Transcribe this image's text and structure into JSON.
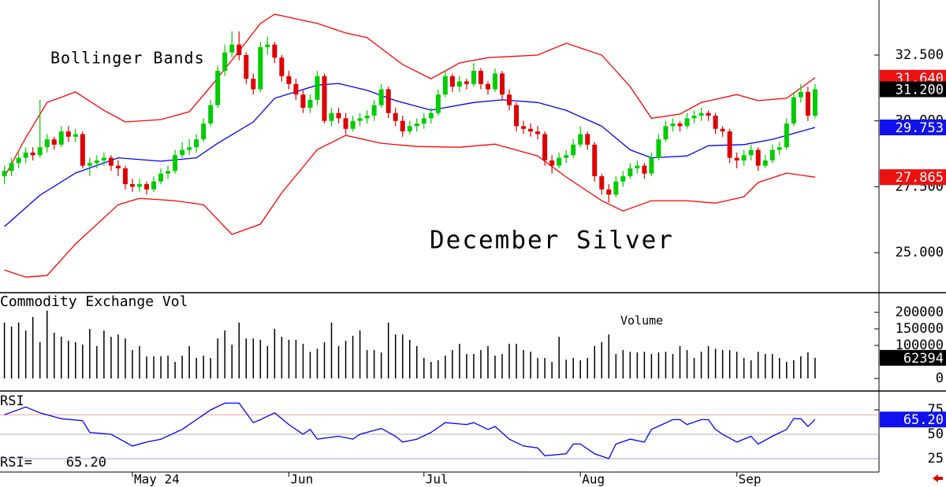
{
  "chart_data": [
    {
      "type": "candlestick",
      "title": "December Silver",
      "subtitle": "Bollinger Bands",
      "categories": [
        null,
        null,
        null,
        null,
        null,
        null,
        null,
        null,
        null,
        null,
        null,
        null,
        null,
        null,
        null,
        null,
        null,
        null,
        "May 24",
        null,
        null,
        null,
        null,
        null,
        null,
        null,
        null,
        null,
        null,
        null,
        null,
        null,
        null,
        null,
        null,
        null,
        null,
        null,
        null,
        null,
        "Jun",
        null,
        null,
        null,
        null,
        null,
        null,
        null,
        null,
        null,
        null,
        null,
        null,
        null,
        null,
        null,
        null,
        null,
        null,
        "Jul",
        null,
        null,
        null,
        null,
        null,
        null,
        null,
        null,
        null,
        null,
        null,
        null,
        null,
        null,
        null,
        null,
        null,
        null,
        null,
        null,
        null,
        "Aug",
        null,
        null,
        null,
        null,
        null,
        null,
        null,
        null,
        null,
        null,
        null,
        null,
        null,
        null,
        null,
        null,
        null,
        null,
        null,
        null,
        null,
        "Sep",
        null,
        null,
        null,
        null,
        null,
        null,
        null,
        null,
        null,
        null,
        null
      ],
      "ohlc": [
        [
          27.9,
          28.3,
          27.6,
          28.1
        ],
        [
          28.1,
          28.6,
          27.9,
          28.4
        ],
        [
          28.4,
          28.8,
          28.2,
          28.6
        ],
        [
          28.6,
          29.0,
          28.4,
          28.8
        ],
        [
          28.8,
          29.0,
          28.5,
          28.7
        ],
        [
          28.7,
          30.8,
          28.6,
          29.0
        ],
        [
          29.0,
          29.5,
          28.8,
          29.3
        ],
        [
          29.3,
          29.4,
          28.9,
          29.1
        ],
        [
          29.1,
          29.8,
          29.0,
          29.6
        ],
        [
          29.6,
          29.8,
          29.2,
          29.4
        ],
        [
          29.4,
          29.7,
          29.2,
          29.5
        ],
        [
          29.5,
          29.6,
          28.2,
          28.3
        ],
        [
          28.3,
          28.6,
          27.9,
          28.4
        ],
        [
          28.4,
          28.7,
          28.2,
          28.5
        ],
        [
          28.5,
          28.8,
          28.3,
          28.6
        ],
        [
          28.6,
          28.7,
          28.1,
          28.3
        ],
        [
          28.3,
          28.5,
          27.9,
          28.2
        ],
        [
          28.2,
          28.3,
          27.4,
          27.6
        ],
        [
          27.6,
          27.8,
          27.3,
          27.5
        ],
        [
          27.5,
          27.8,
          27.3,
          27.6
        ],
        [
          27.6,
          27.7,
          27.2,
          27.4
        ],
        [
          27.4,
          27.9,
          27.3,
          27.7
        ],
        [
          27.7,
          28.2,
          27.6,
          28.0
        ],
        [
          28.0,
          28.3,
          27.8,
          28.1
        ],
        [
          28.1,
          28.9,
          28.0,
          28.7
        ],
        [
          28.7,
          29.2,
          28.6,
          28.9
        ],
        [
          28.9,
          29.3,
          28.7,
          29.0
        ],
        [
          29.0,
          29.5,
          28.8,
          29.3
        ],
        [
          29.3,
          30.1,
          29.2,
          29.9
        ],
        [
          29.9,
          30.8,
          29.8,
          30.6
        ],
        [
          30.6,
          32.1,
          30.5,
          31.9
        ],
        [
          31.9,
          32.9,
          31.7,
          32.6
        ],
        [
          32.6,
          33.4,
          32.4,
          32.9
        ],
        [
          32.9,
          33.4,
          32.3,
          32.5
        ],
        [
          32.5,
          32.6,
          31.4,
          31.6
        ],
        [
          31.6,
          31.8,
          31.0,
          31.2
        ],
        [
          31.2,
          33.0,
          31.1,
          32.8
        ],
        [
          32.8,
          33.2,
          32.5,
          32.9
        ],
        [
          32.9,
          33.0,
          32.2,
          32.4
        ],
        [
          32.4,
          32.5,
          31.5,
          31.7
        ],
        [
          31.7,
          31.9,
          31.2,
          31.4
        ],
        [
          31.4,
          31.6,
          30.8,
          31.0
        ],
        [
          31.0,
          31.2,
          30.3,
          30.5
        ],
        [
          30.5,
          31.0,
          30.3,
          30.8
        ],
        [
          30.8,
          31.9,
          30.6,
          31.7
        ],
        [
          31.7,
          31.8,
          29.9,
          30.0
        ],
        [
          30.0,
          30.5,
          29.8,
          30.3
        ],
        [
          30.3,
          30.5,
          29.9,
          30.1
        ],
        [
          30.1,
          30.3,
          29.5,
          29.7
        ],
        [
          29.7,
          30.2,
          29.6,
          30.0
        ],
        [
          30.0,
          30.3,
          29.8,
          30.1
        ],
        [
          30.1,
          30.4,
          29.9,
          30.2
        ],
        [
          30.2,
          30.8,
          30.0,
          30.6
        ],
        [
          30.6,
          31.4,
          30.5,
          31.2
        ],
        [
          31.2,
          31.3,
          30.1,
          30.3
        ],
        [
          30.3,
          30.5,
          29.8,
          30.0
        ],
        [
          30.0,
          30.2,
          29.4,
          29.6
        ],
        [
          29.6,
          30.0,
          29.5,
          29.8
        ],
        [
          29.8,
          30.1,
          29.6,
          29.9
        ],
        [
          29.9,
          30.3,
          29.7,
          30.1
        ],
        [
          30.1,
          30.5,
          29.9,
          30.3
        ],
        [
          30.3,
          31.2,
          30.2,
          31.0
        ],
        [
          31.0,
          31.9,
          30.9,
          31.7
        ],
        [
          31.7,
          31.8,
          31.1,
          31.3
        ],
        [
          31.3,
          31.7,
          31.1,
          31.5
        ],
        [
          31.5,
          31.6,
          31.2,
          31.4
        ],
        [
          31.4,
          32.2,
          31.3,
          31.9
        ],
        [
          31.9,
          32.0,
          31.2,
          31.4
        ],
        [
          31.4,
          31.5,
          31.0,
          31.2
        ],
        [
          31.2,
          32.0,
          31.1,
          31.8
        ],
        [
          31.8,
          31.9,
          30.8,
          31.0
        ],
        [
          31.0,
          31.2,
          30.4,
          30.6
        ],
        [
          30.6,
          30.7,
          29.6,
          29.8
        ],
        [
          29.8,
          30.0,
          29.5,
          29.7
        ],
        [
          29.7,
          29.9,
          29.4,
          29.6
        ],
        [
          29.6,
          29.8,
          29.3,
          29.5
        ],
        [
          29.5,
          29.6,
          28.3,
          28.5
        ],
        [
          28.5,
          28.7,
          28.0,
          28.3
        ],
        [
          28.3,
          28.8,
          28.2,
          28.6
        ],
        [
          28.6,
          28.9,
          28.4,
          28.7
        ],
        [
          28.7,
          29.3,
          28.6,
          29.1
        ],
        [
          29.1,
          29.8,
          29.0,
          29.5
        ],
        [
          29.5,
          29.6,
          28.9,
          29.1
        ],
        [
          29.1,
          29.2,
          27.7,
          27.9
        ],
        [
          27.9,
          28.0,
          27.2,
          27.4
        ],
        [
          27.4,
          27.6,
          26.9,
          27.2
        ],
        [
          27.2,
          27.9,
          27.1,
          27.7
        ],
        [
          27.7,
          28.1,
          27.5,
          27.9
        ],
        [
          27.9,
          28.4,
          27.8,
          28.2
        ],
        [
          28.2,
          28.5,
          28.0,
          28.3
        ],
        [
          28.3,
          28.4,
          27.8,
          28.0
        ],
        [
          28.0,
          28.8,
          27.9,
          28.6
        ],
        [
          28.6,
          29.5,
          28.5,
          29.3
        ],
        [
          29.3,
          30.0,
          29.2,
          29.8
        ],
        [
          29.8,
          30.1,
          29.6,
          29.9
        ],
        [
          29.9,
          30.0,
          29.6,
          29.8
        ],
        [
          29.8,
          30.3,
          29.7,
          30.1
        ],
        [
          30.1,
          30.4,
          29.9,
          30.2
        ],
        [
          30.2,
          30.5,
          30.0,
          30.3
        ],
        [
          30.3,
          30.4,
          30.0,
          30.2
        ],
        [
          30.2,
          30.3,
          29.5,
          29.7
        ],
        [
          29.7,
          29.8,
          29.4,
          29.6
        ],
        [
          29.6,
          29.7,
          28.4,
          28.6
        ],
        [
          28.6,
          28.8,
          28.2,
          28.5
        ],
        [
          28.5,
          28.9,
          28.3,
          28.7
        ],
        [
          28.7,
          29.1,
          28.5,
          28.9
        ],
        [
          28.9,
          29.0,
          28.1,
          28.3
        ],
        [
          28.3,
          28.7,
          28.2,
          28.5
        ],
        [
          28.5,
          29.1,
          28.4,
          28.9
        ],
        [
          28.9,
          29.2,
          28.7,
          29.0
        ],
        [
          29.0,
          30.1,
          28.9,
          29.9
        ],
        [
          29.9,
          31.1,
          29.8,
          30.9
        ],
        [
          30.9,
          31.4,
          30.7,
          31.1
        ],
        [
          31.1,
          31.3,
          30.0,
          30.2
        ],
        [
          30.2,
          31.4,
          30.1,
          31.2
        ]
      ],
      "up_color": "#00cc00",
      "down_color": "#dd0000",
      "lines": [
        {
          "color": "#ff0000",
          "x": [
            0,
            3,
            6,
            10,
            14,
            17,
            22,
            26,
            29,
            33,
            36,
            38,
            44,
            48,
            51,
            56,
            60,
            64,
            68,
            75,
            79,
            84,
            88,
            91,
            95,
            98,
            103,
            106,
            110,
            114
          ],
          "values": [
            27.87,
            29.36,
            30.7,
            31.1,
            30.4,
            29.96,
            30.05,
            30.35,
            31.3,
            32.65,
            33.7,
            34.05,
            33.7,
            33.34,
            33.16,
            32.14,
            31.6,
            32.2,
            32.4,
            32.5,
            32.95,
            32.5,
            31.3,
            30.1,
            30.26,
            30.7,
            31.0,
            30.77,
            30.86,
            31.64
          ]
        },
        {
          "color": "#0000ff",
          "x": [
            0,
            5,
            10,
            16,
            22,
            27,
            30,
            35,
            38,
            44,
            47,
            51,
            55,
            60,
            66,
            70,
            75,
            79,
            84,
            88,
            91,
            96,
            99,
            104,
            108,
            110,
            114
          ],
          "values": [
            25.99,
            27.18,
            28.02,
            28.6,
            28.47,
            28.6,
            29.15,
            29.96,
            30.86,
            31.36,
            31.42,
            31.16,
            30.77,
            30.41,
            30.7,
            30.8,
            30.7,
            30.4,
            29.8,
            28.9,
            28.6,
            28.67,
            29.06,
            29.1,
            29.3,
            29.45,
            29.753
          ]
        },
        {
          "color": "#ff0000",
          "x": [
            0,
            3,
            6,
            10,
            16,
            19,
            24,
            28,
            32,
            36,
            39,
            44,
            48,
            53,
            58,
            64,
            69,
            75,
            79,
            84,
            87,
            91,
            96,
            100,
            104,
            106,
            110,
            114
          ],
          "values": [
            24.34,
            24.07,
            24.13,
            25.33,
            26.82,
            27.06,
            26.97,
            26.82,
            25.69,
            26.08,
            27.27,
            28.91,
            29.45,
            29.15,
            29.03,
            29.0,
            29.12,
            28.67,
            27.87,
            26.97,
            26.58,
            26.97,
            26.97,
            26.88,
            27.12,
            27.66,
            28.02,
            27.865
          ]
        }
      ],
      "ylim": [
        23.48,
        34.59
      ],
      "yticks": [
        {
          "value": 25,
          "label": "25.000"
        },
        {
          "value": 27.5,
          "label": "27.500"
        },
        {
          "value": 30,
          "label": "30.000"
        },
        {
          "value": 32.5,
          "label": "32.500"
        }
      ],
      "last_labels": [
        {
          "value": 31.64,
          "label": "31.640",
          "color": "#ee1111"
        },
        {
          "value": 31.2,
          "label": "31.200",
          "color": "#000000"
        },
        {
          "value": 29.753,
          "label": "29.753",
          "color": "#1111ee"
        },
        {
          "value": 27.865,
          "label": "27.865",
          "color": "#ee1111"
        }
      ]
    },
    {
      "type": "bar",
      "title": "Commodity Exchange Vol",
      "annotation": "Volume",
      "color": "#000000",
      "label_color": "#000000",
      "values": [
        169000,
        157000,
        169000,
        145000,
        186000,
        110000,
        205000,
        138000,
        126000,
        114000,
        110000,
        102000,
        150000,
        98000,
        145000,
        126000,
        133000,
        121000,
        86000,
        98000,
        67000,
        67000,
        67000,
        69000,
        50000,
        69000,
        98000,
        62000,
        69000,
        62000,
        121000,
        145000,
        102000,
        169000,
        121000,
        121000,
        117000,
        98000,
        150000,
        126000,
        117000,
        117000,
        105000,
        81000,
        90000,
        110000,
        169000,
        98000,
        114000,
        129000,
        145000,
        86000,
        86000,
        79000,
        169000,
        133000,
        133000,
        117000,
        98000,
        62000,
        50000,
        55000,
        69000,
        86000,
        105000,
        74000,
        74000,
        86000,
        98000,
        69000,
        74000,
        105000,
        105000,
        86000,
        81000,
        62000,
        62000,
        50000,
        126000,
        57000,
        62000,
        55000,
        62000,
        98000,
        110000,
        133000,
        74000,
        86000,
        81000,
        79000,
        81000,
        74000,
        79000,
        81000,
        74000,
        98000,
        86000,
        62000,
        81000,
        98000,
        90000,
        86000,
        86000,
        81000,
        62000,
        55000,
        81000,
        74000,
        74000,
        62000,
        50000,
        55000,
        67000,
        79000,
        62394
      ],
      "ylim": [
        -38000,
        259500
      ],
      "yticks": [
        0,
        100000,
        150000,
        200000
      ]
    },
    {
      "type": "line",
      "title": "RSI",
      "annotation": "RSI=",
      "color": "#0000ff",
      "x": [
        0,
        3,
        5,
        8,
        11,
        12,
        15,
        17,
        18,
        20,
        22,
        25,
        27,
        29,
        31,
        33,
        35,
        36,
        38,
        40,
        42,
        43,
        44,
        47,
        49,
        50,
        53,
        55,
        56,
        58,
        60,
        62,
        65,
        66,
        68,
        69,
        71,
        73,
        75,
        76,
        79,
        80,
        81,
        83,
        85,
        86,
        88,
        90,
        91,
        94,
        95,
        96,
        98,
        99,
        100,
        101,
        103,
        105,
        106,
        108,
        110,
        111,
        112,
        113,
        114
      ],
      "values": [
        70,
        78,
        72,
        66,
        64,
        52,
        50,
        42,
        38,
        42,
        45,
        55,
        65,
        75,
        82,
        82,
        62,
        65,
        72,
        60,
        50,
        55,
        45,
        48,
        45,
        50,
        56,
        48,
        42,
        45,
        52,
        62,
        60,
        62,
        55,
        58,
        45,
        38,
        36,
        28,
        30,
        40,
        40,
        30,
        25,
        40,
        45,
        42,
        55,
        65,
        65,
        60,
        65,
        65,
        55,
        50,
        42,
        48,
        40,
        48,
        55,
        66,
        66,
        58,
        65.2
      ],
      "levels": [
        {
          "value": 70,
          "color": "#f0a0a0"
        },
        {
          "value": 50,
          "color": "#b0b0b0"
        },
        {
          "value": 25,
          "color": "#a0a0e0"
        }
      ],
      "last_label": {
        "value": 65.2,
        "label": "65.20",
        "color": "#1111ee"
      },
      "ylim": [
        11.3,
        94.4
      ],
      "yticks": [
        25,
        50,
        75
      ]
    }
  ]
}
